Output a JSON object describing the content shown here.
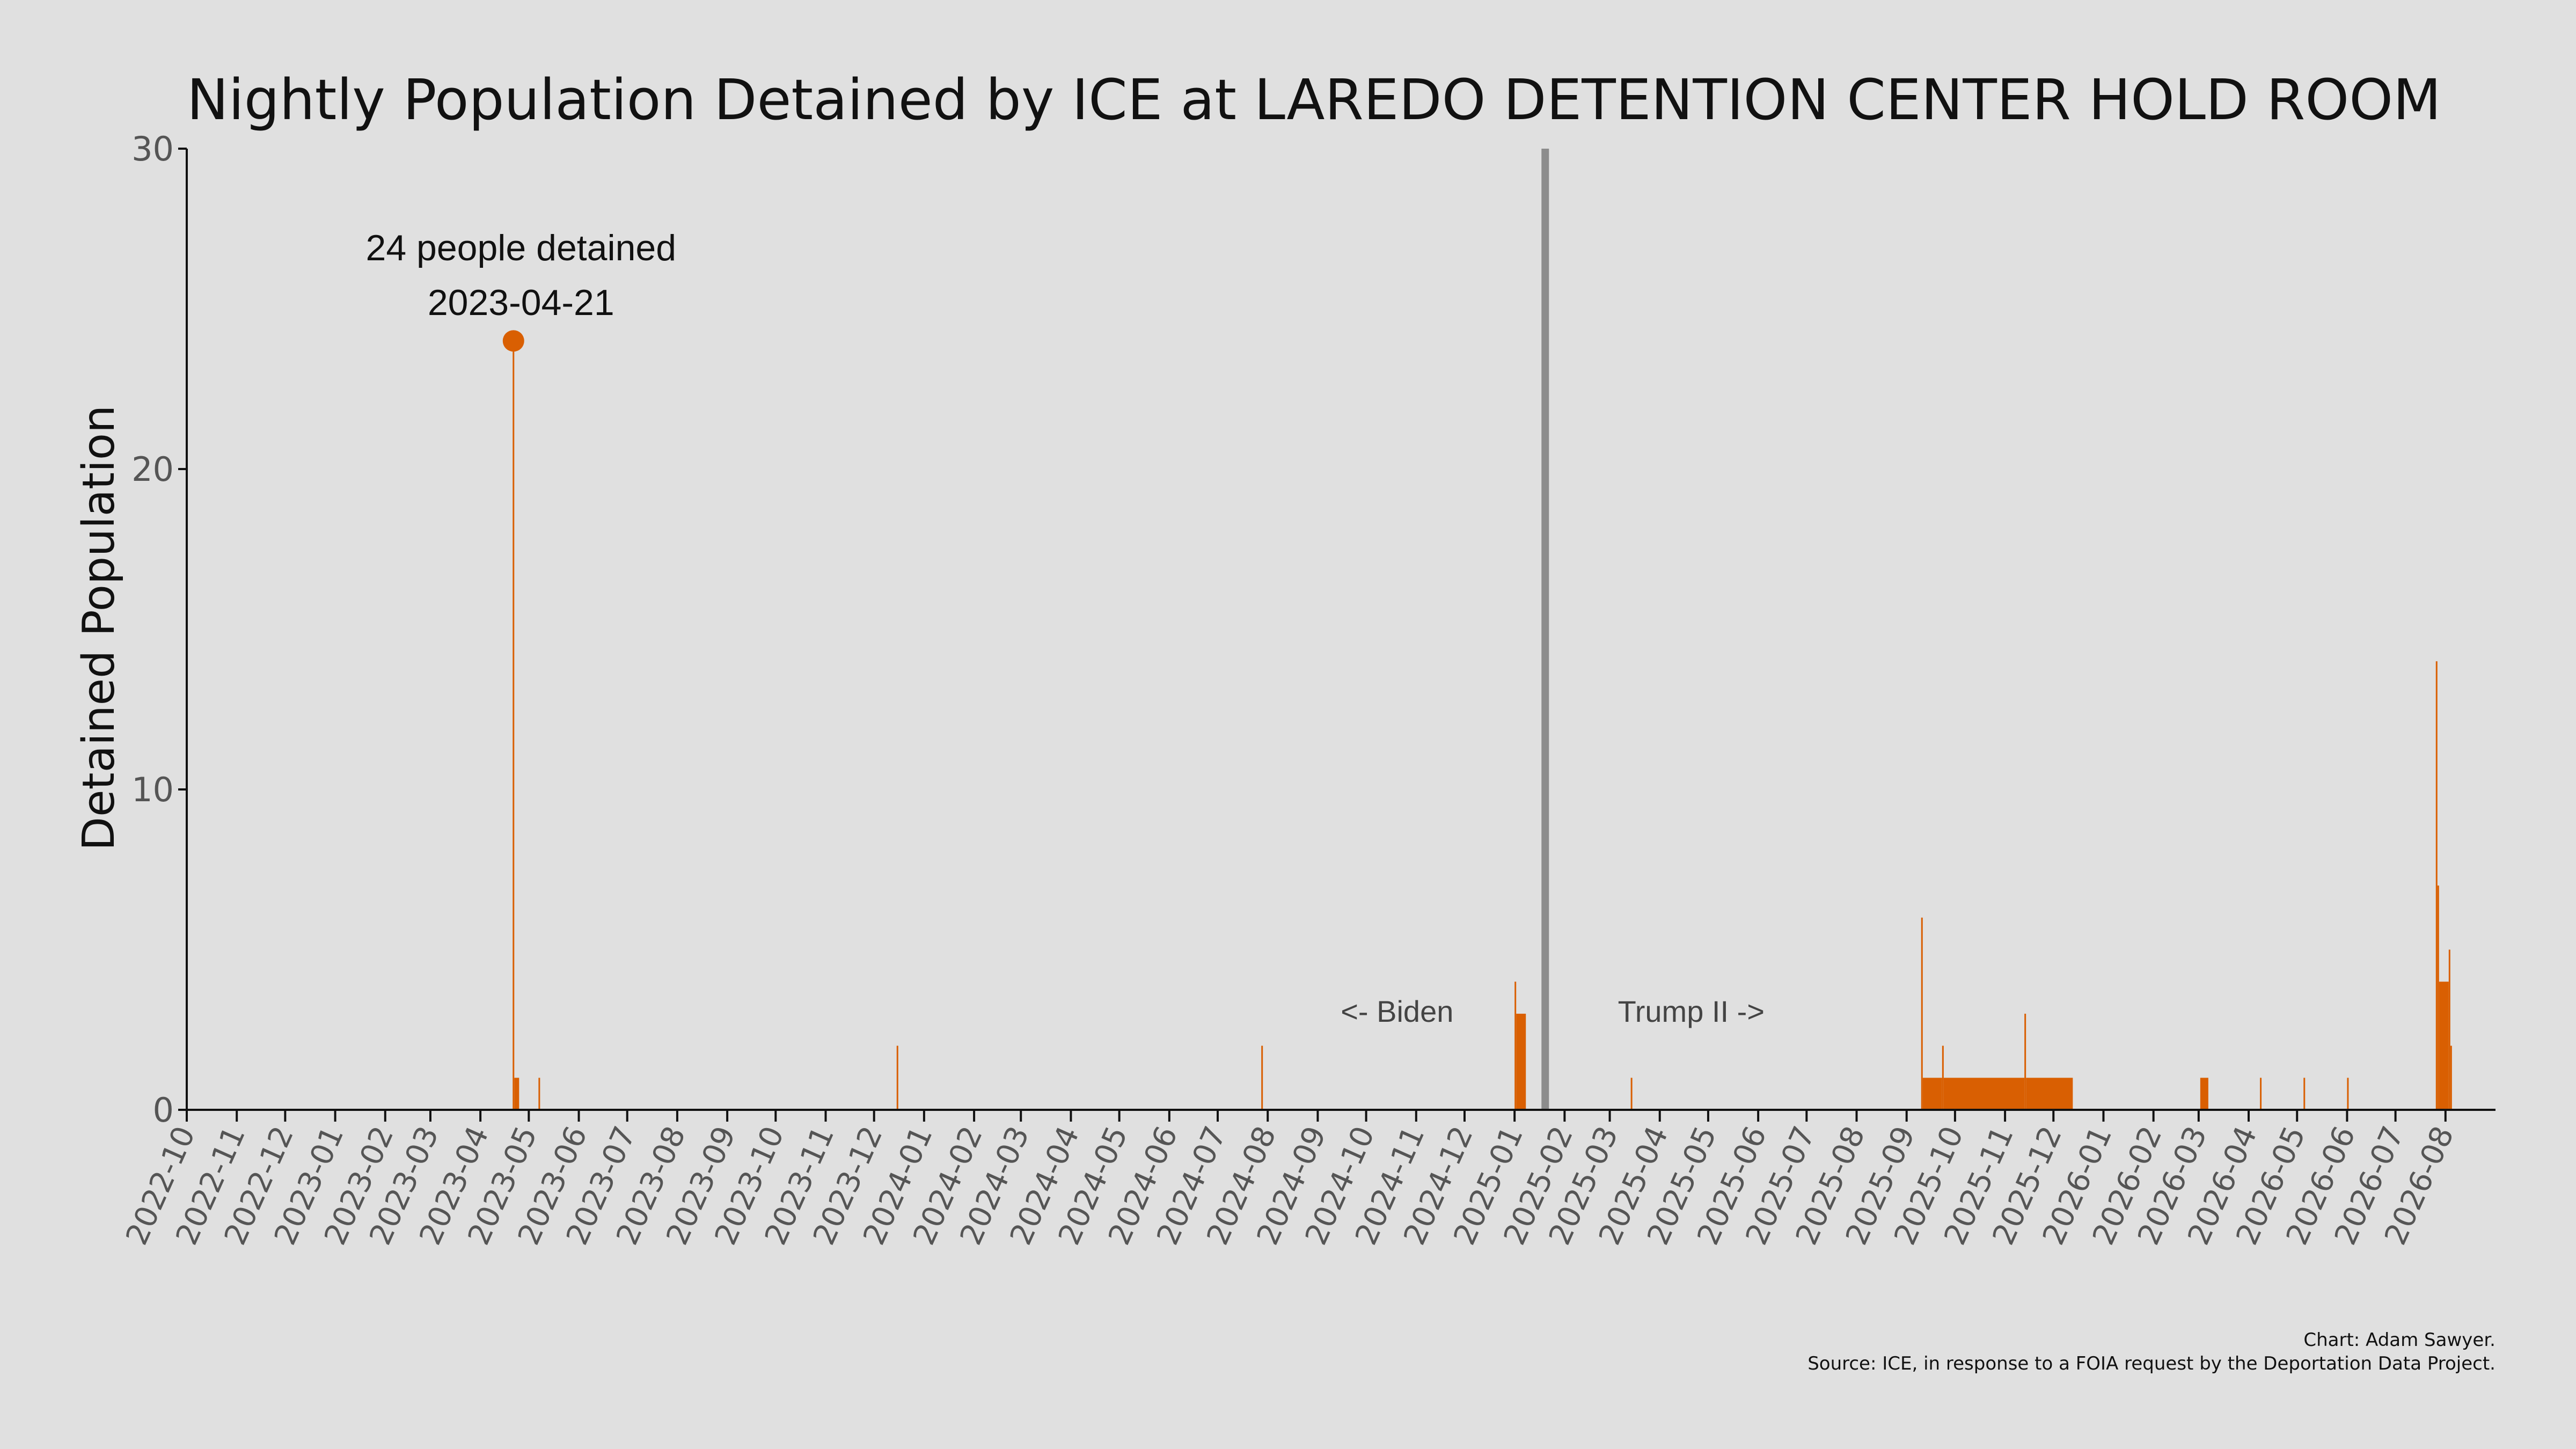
{
  "chart_data": {
    "type": "bar",
    "title": "Nightly Population Detained by ICE at LAREDO DETENTION CENTER HOLD ROOM",
    "xlabel": "",
    "ylabel": "Detained Population",
    "ylim": [
      0,
      30
    ],
    "yticks": [
      "0",
      "10",
      "20",
      "30"
    ],
    "xlim": [
      "2022-10-01",
      "2026-08-31"
    ],
    "x_tick_labels": [
      "2022-10",
      "2022-11",
      "2022-12",
      "2023-01",
      "2023-02",
      "2023-03",
      "2023-04",
      "2023-05",
      "2023-06",
      "2023-07",
      "2023-08",
      "2023-09",
      "2023-10",
      "2023-11",
      "2023-12",
      "2024-01",
      "2024-02",
      "2024-03",
      "2024-04",
      "2024-05",
      "2024-06",
      "2024-07",
      "2024-08",
      "2024-09",
      "2024-10",
      "2024-11",
      "2024-12",
      "2025-01",
      "2025-02",
      "2025-03",
      "2025-04",
      "2025-05",
      "2025-06",
      "2025-07",
      "2025-08",
      "2025-09",
      "2025-10",
      "2025-11",
      "2025-12",
      "2026-01",
      "2026-02",
      "2026-03",
      "2026-04",
      "2026-05",
      "2026-06",
      "2026-07",
      "2026-08"
    ],
    "bar_color": "#d95f02",
    "series": [
      {
        "values": [
          {
            "start": "2023-04-21",
            "end": "2023-04-21",
            "value": 24
          },
          {
            "start": "2023-04-22",
            "end": "2023-04-24",
            "value": 1
          },
          {
            "start": "2023-05-07",
            "end": "2023-05-07",
            "value": 1
          },
          {
            "start": "2023-12-15",
            "end": "2023-12-15",
            "value": 2
          },
          {
            "start": "2024-07-28",
            "end": "2024-07-28",
            "value": 2
          },
          {
            "start": "2025-01-01",
            "end": "2025-01-01",
            "value": 4
          },
          {
            "start": "2025-01-02",
            "end": "2025-01-07",
            "value": 3
          },
          {
            "start": "2025-03-14",
            "end": "2025-03-14",
            "value": 1
          },
          {
            "start": "2025-09-10",
            "end": "2025-09-10",
            "value": 6
          },
          {
            "start": "2025-09-11",
            "end": "2025-09-22",
            "value": 1
          },
          {
            "start": "2025-09-23",
            "end": "2025-09-23",
            "value": 2
          },
          {
            "start": "2025-09-24",
            "end": "2025-11-12",
            "value": 1
          },
          {
            "start": "2025-11-13",
            "end": "2025-11-13",
            "value": 3
          },
          {
            "start": "2025-11-14",
            "end": "2025-12-12",
            "value": 1
          },
          {
            "start": "2026-03-02",
            "end": "2026-03-06",
            "value": 1
          },
          {
            "start": "2026-04-08",
            "end": "2026-04-08",
            "value": 1
          },
          {
            "start": "2026-05-05",
            "end": "2026-05-05",
            "value": 1
          },
          {
            "start": "2026-06-01",
            "end": "2026-06-01",
            "value": 1
          },
          {
            "start": "2026-07-26",
            "end": "2026-07-26",
            "value": 14
          },
          {
            "start": "2026-07-27",
            "end": "2026-07-27",
            "value": 7
          },
          {
            "start": "2026-07-28",
            "end": "2026-08-02",
            "value": 4
          },
          {
            "start": "2026-08-03",
            "end": "2026-08-03",
            "value": 5
          },
          {
            "start": "2026-08-04",
            "end": "2026-08-04",
            "value": 2
          }
        ]
      }
    ],
    "divider": {
      "date": "2025-01-20",
      "color": "#8c8c8c"
    },
    "peak_marker": {
      "date": "2023-04-21",
      "value": 24
    },
    "annotations": [
      "24 people detained",
      "2023-04-21"
    ],
    "era_labels": {
      "left": "<- Biden",
      "right": "Trump II ->"
    },
    "grid": false,
    "legend": "none"
  },
  "credits": {
    "line1": "Chart: Adam Sawyer.",
    "line2": "Source: ICE, in response to a FOIA request by the Deportation Data Project."
  }
}
